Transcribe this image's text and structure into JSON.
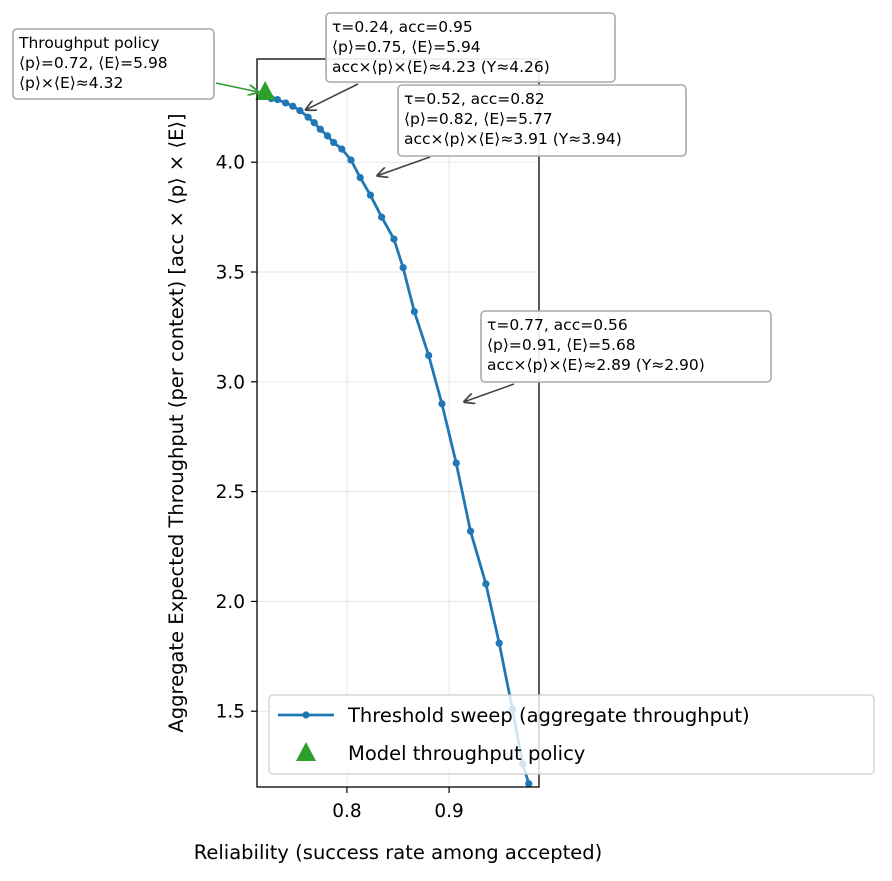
{
  "chart_data": {
    "type": "line",
    "xlabel": "Reliability (success rate among accepted)",
    "ylabel": "Aggregate Expected Throughput (per context) [acc × ⟨p⟩ × ⟨E⟩]",
    "xlim": [
      0.712,
      0.988
    ],
    "ylim": [
      1.155,
      4.47
    ],
    "xticks": [
      0.8,
      0.9
    ],
    "xtick_labels": [
      "0.8",
      "0.9"
    ],
    "yticks": [
      1.5,
      2.0,
      2.5,
      3.0,
      3.5,
      4.0
    ],
    "ytick_labels": [
      "1.5",
      "2.0",
      "2.5",
      "3.0",
      "3.5",
      "4.0"
    ],
    "grid": true,
    "legend_position": "lower right",
    "series": [
      {
        "name": "Threshold sweep (aggregate throughput)",
        "color": "#1f77b4",
        "marker": "circle",
        "x": [
          0.726,
          0.732,
          0.74,
          0.747,
          0.754,
          0.762,
          0.768,
          0.774,
          0.781,
          0.787,
          0.795,
          0.804,
          0.813,
          0.823,
          0.834,
          0.846,
          0.855,
          0.866,
          0.88,
          0.893,
          0.907,
          0.921,
          0.936,
          0.949,
          0.962,
          0.972,
          0.978
        ],
        "y": [
          4.29,
          4.285,
          4.27,
          4.255,
          4.235,
          4.205,
          4.18,
          4.15,
          4.12,
          4.09,
          4.06,
          4.01,
          3.93,
          3.85,
          3.75,
          3.65,
          3.52,
          3.32,
          3.12,
          2.9,
          2.63,
          2.32,
          2.08,
          1.81,
          1.51,
          1.26,
          1.17
        ]
      },
      {
        "name": "Model throughput policy",
        "color": "#2ca02c",
        "marker": "triangle",
        "x": [
          0.72
        ],
        "y": [
          4.32
        ]
      }
    ],
    "annotations": [
      {
        "lines": [
          "Throughput policy",
          "⟨p⟩=0.72, ⟨E⟩=5.98",
          "⟨p⟩×⟨E⟩≈4.32"
        ],
        "x": 0.72,
        "y": 4.32,
        "arrow_color": "#2ca02c"
      },
      {
        "lines": [
          "τ=0.24, acc=0.95",
          "⟨p⟩=0.75, ⟨E⟩=5.94",
          "acc×⟨p⟩×⟨E⟩≈4.23 (Y≈4.26)"
        ],
        "x": 0.757,
        "y": 4.23,
        "arrow_color": "#444444"
      },
      {
        "lines": [
          "τ=0.52, acc=0.82",
          "⟨p⟩=0.82, ⟨E⟩=5.77",
          "acc×⟨p⟩×⟨E⟩≈3.91 (Y≈3.94)"
        ],
        "x": 0.827,
        "y": 3.93,
        "arrow_color": "#444444"
      },
      {
        "lines": [
          "τ=0.77, acc=0.56",
          "⟨p⟩=0.91, ⟨E⟩=5.68",
          "acc×⟨p⟩×⟨E⟩≈2.89 (Y≈2.90)"
        ],
        "x": 0.912,
        "y": 2.9,
        "arrow_color": "#444444"
      }
    ]
  }
}
